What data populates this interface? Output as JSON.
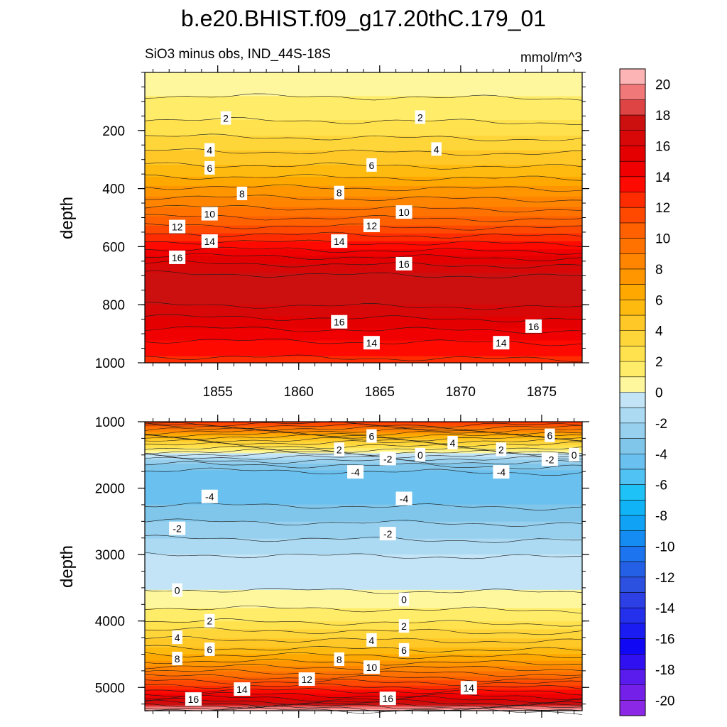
{
  "title": "b.e20.BHIST.f09_g17.20thC.179_01",
  "chart_data": [
    {
      "type": "heatmap",
      "panel": "upper",
      "subtitle_left": "SiO3 minus obs, IND_44S-18S",
      "subtitle_right": "mmol/m^3",
      "ylabel": "depth",
      "xlim": [
        1850.5,
        1877.5
      ],
      "ylim": [
        1000,
        0
      ],
      "xticks": [
        1855,
        1860,
        1865,
        1870,
        1875
      ],
      "xtick_labels": [
        "1855",
        "1860",
        "1865",
        "1870",
        "1875"
      ],
      "yticks": [
        200,
        400,
        600,
        800,
        1000
      ],
      "ytick_labels": [
        "200",
        "400",
        "600",
        "800",
        "1000"
      ],
      "profile": {
        "depth": [
          0,
          50,
          100,
          150,
          200,
          250,
          300,
          350,
          400,
          450,
          500,
          550,
          600,
          650,
          700,
          750,
          800,
          850,
          900,
          950,
          1000
        ],
        "value": [
          0.3,
          0.7,
          1.2,
          1.8,
          2.6,
          3.6,
          4.6,
          5.8,
          7.2,
          8.6,
          10.1,
          11.8,
          13.7,
          15.8,
          17.2,
          17.5,
          17.0,
          15.8,
          14.5,
          13.4,
          12.7
        ]
      },
      "contour_labels": [
        {
          "text": "2",
          "x": 1855.5,
          "depth": 158
        },
        {
          "text": "2",
          "x": 1867.5,
          "depth": 155
        },
        {
          "text": "4",
          "x": 1854.5,
          "depth": 268
        },
        {
          "text": "4",
          "x": 1868.5,
          "depth": 265
        },
        {
          "text": "6",
          "x": 1854.5,
          "depth": 330
        },
        {
          "text": "6",
          "x": 1864.5,
          "depth": 320
        },
        {
          "text": "8",
          "x": 1856.5,
          "depth": 418
        },
        {
          "text": "8",
          "x": 1862.5,
          "depth": 415
        },
        {
          "text": "10",
          "x": 1854.5,
          "depth": 488
        },
        {
          "text": "10",
          "x": 1866.5,
          "depth": 482
        },
        {
          "text": "12",
          "x": 1852.5,
          "depth": 532
        },
        {
          "text": "12",
          "x": 1864.5,
          "depth": 528
        },
        {
          "text": "14",
          "x": 1854.5,
          "depth": 582
        },
        {
          "text": "14",
          "x": 1862.5,
          "depth": 582
        },
        {
          "text": "16",
          "x": 1852.5,
          "depth": 638
        },
        {
          "text": "16",
          "x": 1866.5,
          "depth": 660
        },
        {
          "text": "16",
          "x": 1862.5,
          "depth": 860
        },
        {
          "text": "16",
          "x": 1874.5,
          "depth": 875
        },
        {
          "text": "14",
          "x": 1864.5,
          "depth": 932
        },
        {
          "text": "14",
          "x": 1872.5,
          "depth": 932
        }
      ]
    },
    {
      "type": "heatmap",
      "panel": "lower",
      "ylabel": "depth",
      "xlim": [
        1850.5,
        1877.5
      ],
      "ylim": [
        5350,
        1000
      ],
      "yticks": [
        1000,
        2000,
        3000,
        4000,
        5000
      ],
      "ytick_labels": [
        "1000",
        "2000",
        "3000",
        "4000",
        "5000"
      ],
      "profile": {
        "depth": [
          1000,
          1100,
          1200,
          1300,
          1400,
          1500,
          1600,
          1700,
          1800,
          2000,
          2200,
          2500,
          2800,
          3000,
          3300,
          3500,
          3600,
          3800,
          4000,
          4200,
          4400,
          4600,
          4800,
          5000,
          5100,
          5200,
          5300,
          5350
        ],
        "value": [
          12.5,
          9.5,
          6.5,
          4.0,
          2.0,
          -0.5,
          -2.5,
          -3.8,
          -4.5,
          -4.6,
          -4.2,
          -3.0,
          -1.8,
          -1.0,
          -0.5,
          -0.1,
          0.3,
          1.0,
          2.0,
          3.5,
          5.0,
          7.0,
          9.5,
          12.5,
          14.0,
          16.0,
          19.0,
          21.0
        ]
      },
      "contour_labels": [
        {
          "text": "6",
          "x": 1864.5,
          "depth": 1220
        },
        {
          "text": "4",
          "x": 1869.5,
          "depth": 1320
        },
        {
          "text": "6",
          "x": 1875.5,
          "depth": 1210
        },
        {
          "text": "2",
          "x": 1862.5,
          "depth": 1420
        },
        {
          "text": "2",
          "x": 1872.5,
          "depth": 1420
        },
        {
          "text": "0",
          "x": 1867.5,
          "depth": 1500
        },
        {
          "text": "0",
          "x": 1877.0,
          "depth": 1500
        },
        {
          "text": "-2",
          "x": 1865.5,
          "depth": 1560
        },
        {
          "text": "-2",
          "x": 1875.5,
          "depth": 1570
        },
        {
          "text": "-4",
          "x": 1863.5,
          "depth": 1760
        },
        {
          "text": "-4",
          "x": 1872.5,
          "depth": 1760
        },
        {
          "text": "-4",
          "x": 1854.5,
          "depth": 2130
        },
        {
          "text": "-4",
          "x": 1866.5,
          "depth": 2160
        },
        {
          "text": "-2",
          "x": 1852.5,
          "depth": 2610
        },
        {
          "text": "-2",
          "x": 1865.5,
          "depth": 2690
        },
        {
          "text": "0",
          "x": 1852.5,
          "depth": 3540
        },
        {
          "text": "0",
          "x": 1866.5,
          "depth": 3680
        },
        {
          "text": "2",
          "x": 1854.5,
          "depth": 4000
        },
        {
          "text": "2",
          "x": 1866.5,
          "depth": 4080
        },
        {
          "text": "4",
          "x": 1852.5,
          "depth": 4250
        },
        {
          "text": "4",
          "x": 1864.5,
          "depth": 4290
        },
        {
          "text": "6",
          "x": 1854.5,
          "depth": 4430
        },
        {
          "text": "6",
          "x": 1866.5,
          "depth": 4440
        },
        {
          "text": "8",
          "x": 1852.5,
          "depth": 4570
        },
        {
          "text": "8",
          "x": 1862.5,
          "depth": 4580
        },
        {
          "text": "10",
          "x": 1864.5,
          "depth": 4700
        },
        {
          "text": "12",
          "x": 1860.5,
          "depth": 4880
        },
        {
          "text": "14",
          "x": 1856.5,
          "depth": 5030
        },
        {
          "text": "14",
          "x": 1870.5,
          "depth": 5010
        },
        {
          "text": "16",
          "x": 1853.5,
          "depth": 5180
        },
        {
          "text": "16",
          "x": 1865.5,
          "depth": 5170
        }
      ]
    }
  ],
  "colorbar": {
    "labels": [
      "20",
      "18",
      "16",
      "14",
      "12",
      "10",
      "8",
      "6",
      "4",
      "2",
      "0",
      "-2",
      "-4",
      "-6",
      "-8",
      "-10",
      "-12",
      "-14",
      "-16",
      "-18",
      "-20"
    ],
    "levels": [
      21,
      20,
      19,
      18,
      17,
      16,
      15,
      14,
      13,
      12,
      11,
      10,
      9,
      8,
      7,
      6,
      5,
      4,
      3,
      2,
      1,
      0,
      -1,
      -2,
      -3,
      -4,
      -5,
      -6,
      -7,
      -8,
      -9,
      -10,
      -11,
      -12,
      -13,
      -14,
      -15,
      -16,
      -17,
      -18,
      -19,
      -20,
      -21
    ],
    "colors": [
      "#fdb4b4",
      "#f07878",
      "#de4444",
      "#cc1010",
      "#d80808",
      "#e40000",
      "#f00000",
      "#fe0a00",
      "#ff2c00",
      "#ff4800",
      "#ff6000",
      "#ff7200",
      "#ff8400",
      "#ff9600",
      "#ffa800",
      "#ffba10",
      "#ffc826",
      "#ffd63a",
      "#ffe24e",
      "#ffec68",
      "#fff79e",
      "#c2e4f6",
      "#acdaf2",
      "#96d0ee",
      "#80c6ea",
      "#6ac0ee",
      "#50c2f4",
      "#1ec2f6",
      "#10b4f6",
      "#10a2f4",
      "#148cf2",
      "#1c74ee",
      "#2460e6",
      "#2c50e0",
      "#2c40e6",
      "#2430ec",
      "#1a1cf2",
      "#1008f4",
      "#3010f0",
      "#5a1cec",
      "#7420e8",
      "#8a28e6"
    ]
  }
}
